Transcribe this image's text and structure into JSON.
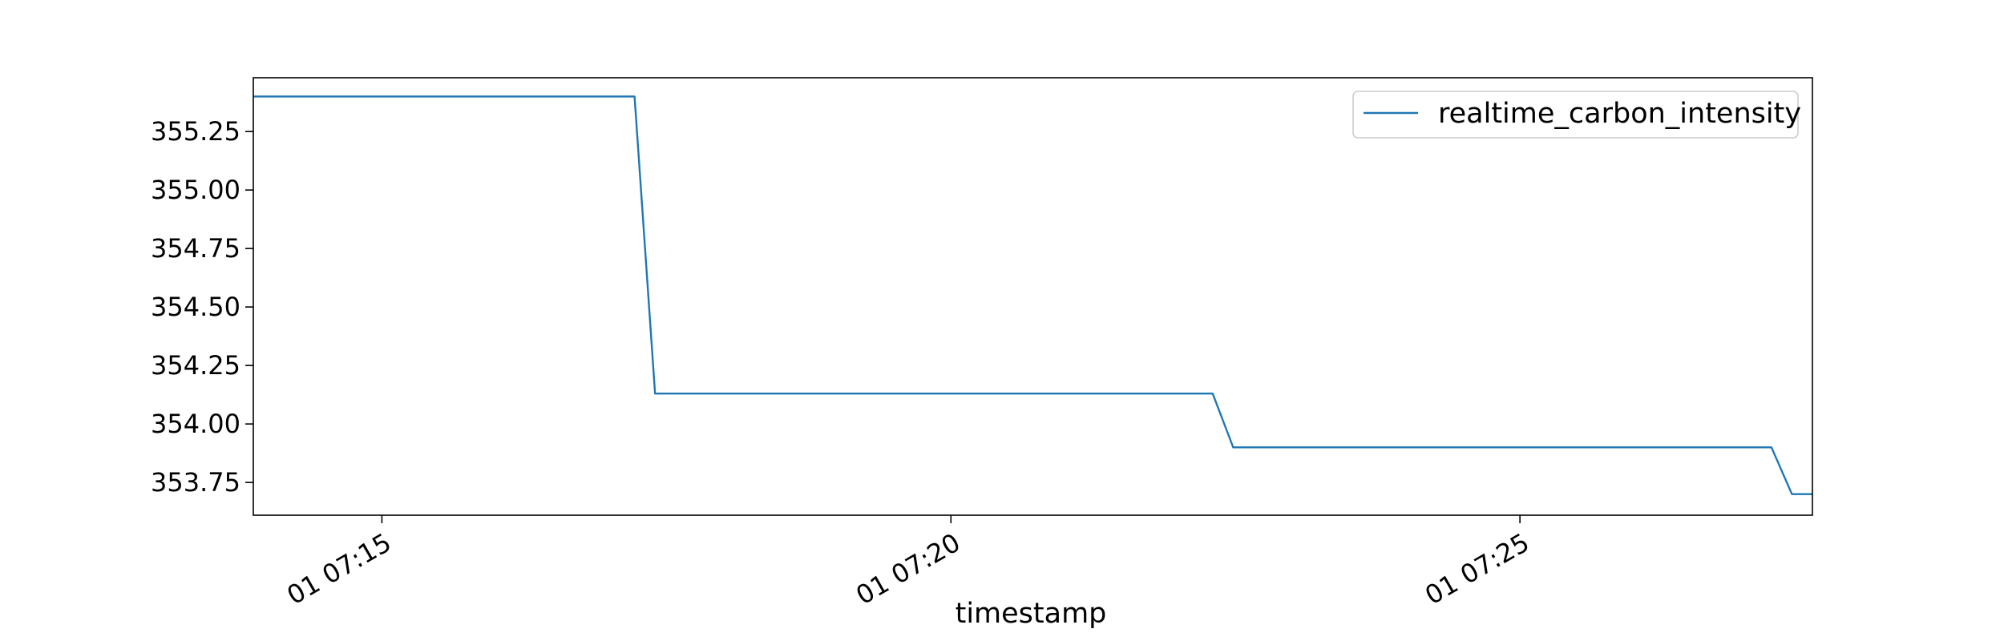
{
  "chart_data": {
    "type": "line",
    "title": "",
    "xlabel": "timestamp",
    "ylabel": "",
    "x_ticks": [
      "01 07:15",
      "01 07:20",
      "01 07:25"
    ],
    "x_tick_minutes": [
      15,
      20,
      25
    ],
    "xlim_minutes": [
      13.87,
      27.57
    ],
    "y_ticks": [
      "353.75",
      "354.00",
      "354.25",
      "354.50",
      "354.75",
      "355.00",
      "355.25"
    ],
    "y_tick_values": [
      353.75,
      354.0,
      354.25,
      354.5,
      354.75,
      355.0,
      355.25
    ],
    "ylim": [
      353.61,
      355.48
    ],
    "grid": false,
    "legend_position": "top-right",
    "series": [
      {
        "name": "realtime_carbon_intensity",
        "color": "#1f77b4",
        "x_minutes": [
          13.87,
          17.22,
          17.4,
          22.3,
          22.48,
          27.21,
          27.39,
          27.57
        ],
        "values": [
          355.4,
          355.4,
          354.13,
          354.13,
          353.9,
          353.9,
          353.7,
          353.7
        ]
      }
    ]
  }
}
